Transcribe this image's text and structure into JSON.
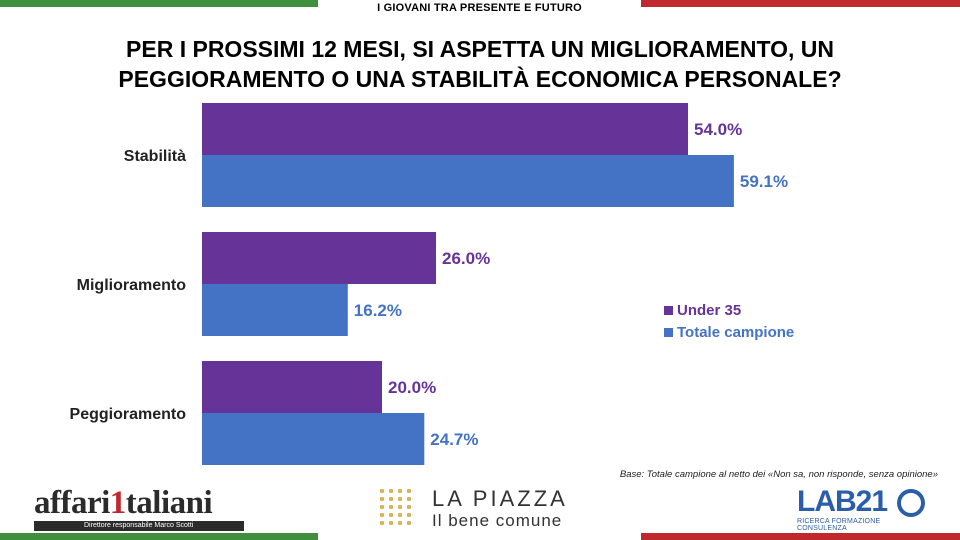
{
  "header": {
    "label": "I GIOVANI TRA PRESENTE E FUTURO"
  },
  "title": "PER I PROSSIMI 12 MESI, SI ASPETTA UN MIGLIORAMENTO, UN PEGGIORAMENTO O UNA STABILITÀ ECONOMICA PERSONALE?",
  "chart_data": {
    "type": "bar",
    "orientation": "horizontal",
    "title": "PER I PROSSIMI 12 MESI, SI ASPETTA UN MIGLIORAMENTO, UN PEGGIORAMENTO O UNA STABILITÀ ECONOMICA PERSONALE?",
    "categories": [
      "Stabilità",
      "Miglioramento",
      "Peggioramento"
    ],
    "series": [
      {
        "name": "Under 35",
        "values": [
          54.0,
          26.0,
          20.0
        ],
        "labels": [
          "54.0%",
          "26.0%",
          "20.0%"
        ],
        "color": "#663399"
      },
      {
        "name": "Totale campione",
        "values": [
          59.1,
          16.2,
          24.7
        ],
        "labels": [
          "59.1%",
          "16.2%",
          "24.7%"
        ],
        "color": "#4472c4"
      }
    ],
    "xlim": [
      0,
      60
    ],
    "grid": false,
    "legend_position": "right"
  },
  "legend": {
    "items": [
      "Under 35",
      "Totale campione"
    ]
  },
  "note": "Base: Totale campione al netto dei «Non sa, non risponde, senza opinione»",
  "logos": {
    "affari_pre": "affari",
    "affari_one": "1",
    "affari_post": "taliani",
    "affari_sub": "Direttore responsabile Marco Scotti",
    "piazza_title": "LA PIAZZA",
    "piazza_sub": "Il bene comune",
    "lab_text": "LAB21",
    "lab_sub": "RICERCA FORMAZIONE CONSULENZA"
  }
}
